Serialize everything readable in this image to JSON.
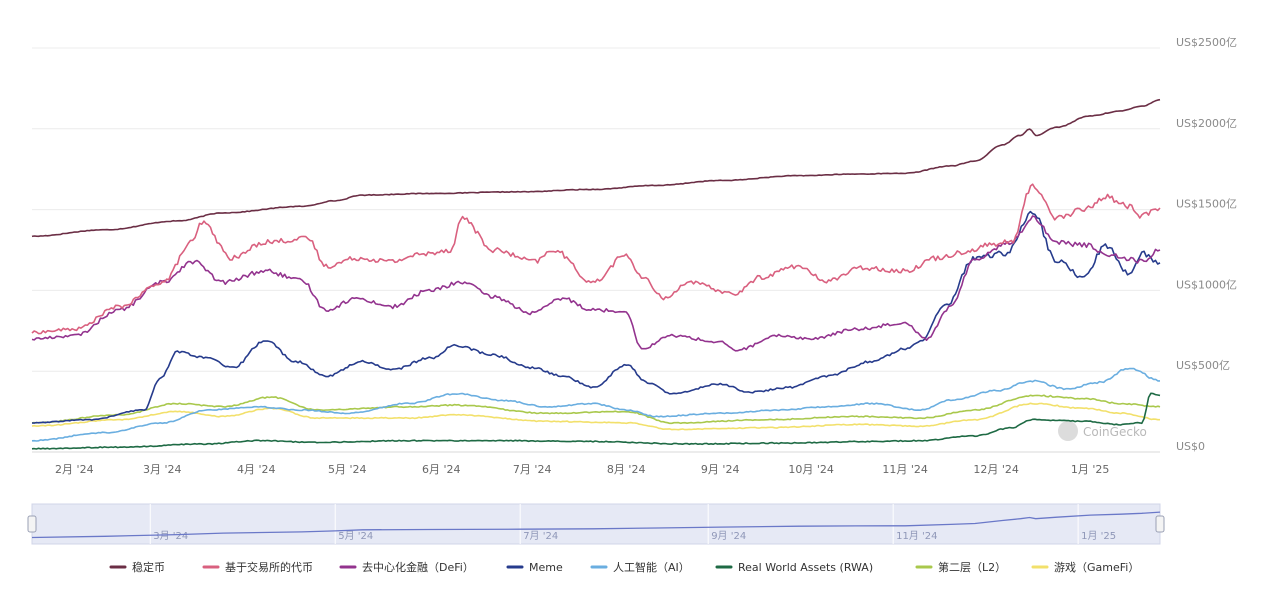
{
  "chart_data": {
    "type": "line",
    "title": "",
    "xlabel": "",
    "ylabel": "",
    "y_unit_label_format": "US${v}亿",
    "ylim": [
      0,
      2500
    ],
    "y_ticks": [
      {
        "value": 0,
        "label": "US$0"
      },
      {
        "value": 500,
        "label": "US$500亿"
      },
      {
        "value": 1000,
        "label": "US$1000亿"
      },
      {
        "value": 1500,
        "label": "US$1500亿"
      },
      {
        "value": 2000,
        "label": "US$2000亿"
      },
      {
        "value": 2500,
        "label": "US$2500亿"
      }
    ],
    "x_range": [
      "2024-01-22",
      "2025-01-28"
    ],
    "x_ticks": [
      {
        "date": "2024-02-01",
        "label": "2月 '24"
      },
      {
        "date": "2024-03-01",
        "label": "3月 '24"
      },
      {
        "date": "2024-04-01",
        "label": "4月 '24"
      },
      {
        "date": "2024-05-01",
        "label": "5月 '24"
      },
      {
        "date": "2024-06-01",
        "label": "6月 '24"
      },
      {
        "date": "2024-07-01",
        "label": "7月 '24"
      },
      {
        "date": "2024-08-01",
        "label": "8月 '24"
      },
      {
        "date": "2024-09-01",
        "label": "9月 '24"
      },
      {
        "date": "2024-10-01",
        "label": "10月 '24"
      },
      {
        "date": "2024-11-01",
        "label": "11月 '24"
      },
      {
        "date": "2024-12-01",
        "label": "12月 '24"
      },
      {
        "date": "2025-01-01",
        "label": "1月 '25"
      }
    ],
    "grid": true,
    "legend_position": "bottom",
    "watermark": "CoinGecko",
    "navigator_ticks": [
      {
        "date": "2024-03-01",
        "label": "3月 '24"
      },
      {
        "date": "2024-05-01",
        "label": "5月 '24"
      },
      {
        "date": "2024-07-01",
        "label": "7月 '24"
      },
      {
        "date": "2024-09-01",
        "label": "9月 '24"
      },
      {
        "date": "2024-11-01",
        "label": "11月 '24"
      },
      {
        "date": "2025-01-01",
        "label": "1月 '25"
      }
    ],
    "series": [
      {
        "name": "稳定币",
        "color": "#6b2e45",
        "values": [
          [
            "2024-01-22",
            1335
          ],
          [
            "2024-02-15",
            1375
          ],
          [
            "2024-03-10",
            1430
          ],
          [
            "2024-03-25",
            1480
          ],
          [
            "2024-04-20",
            1520
          ],
          [
            "2024-05-01",
            1555
          ],
          [
            "2024-05-10",
            1590
          ],
          [
            "2024-06-01",
            1600
          ],
          [
            "2024-07-01",
            1610
          ],
          [
            "2024-07-25",
            1625
          ],
          [
            "2024-08-15",
            1650
          ],
          [
            "2024-09-05",
            1680
          ],
          [
            "2024-10-01",
            1710
          ],
          [
            "2024-10-20",
            1720
          ],
          [
            "2024-11-05",
            1725
          ],
          [
            "2024-11-20",
            1770
          ],
          [
            "2024-11-28",
            1800
          ],
          [
            "2024-12-07",
            1900
          ],
          [
            "2024-12-13",
            1960
          ],
          [
            "2024-12-16",
            2000
          ],
          [
            "2024-12-18",
            1960
          ],
          [
            "2024-12-25",
            2010
          ],
          [
            "2025-01-05",
            2080
          ],
          [
            "2025-01-15",
            2110
          ],
          [
            "2025-01-22",
            2140
          ],
          [
            "2025-01-28",
            2180
          ]
        ]
      },
      {
        "name": "基于交易所的代币",
        "color": "#d9607f",
        "values": [
          [
            "2024-01-22",
            740
          ],
          [
            "2024-02-05",
            760
          ],
          [
            "2024-02-20",
            900
          ],
          [
            "2024-03-05",
            1050
          ],
          [
            "2024-03-15",
            1300
          ],
          [
            "2024-03-18",
            1420
          ],
          [
            "2024-03-28",
            1200
          ],
          [
            "2024-04-08",
            1300
          ],
          [
            "2024-04-22",
            1320
          ],
          [
            "2024-04-28",
            1150
          ],
          [
            "2024-05-08",
            1200
          ],
          [
            "2024-05-20",
            1180
          ],
          [
            "2024-05-28",
            1220
          ],
          [
            "2024-06-08",
            1250
          ],
          [
            "2024-06-12",
            1450
          ],
          [
            "2024-06-22",
            1250
          ],
          [
            "2024-07-06",
            1180
          ],
          [
            "2024-07-12",
            1250
          ],
          [
            "2024-07-25",
            1050
          ],
          [
            "2024-08-05",
            1220
          ],
          [
            "2024-08-10",
            1080
          ],
          [
            "2024-08-18",
            950
          ],
          [
            "2024-08-25",
            1050
          ],
          [
            "2024-09-10",
            980
          ],
          [
            "2024-09-18",
            1080
          ],
          [
            "2024-09-30",
            1150
          ],
          [
            "2024-10-10",
            1060
          ],
          [
            "2024-10-22",
            1140
          ],
          [
            "2024-11-05",
            1120
          ],
          [
            "2024-11-15",
            1200
          ],
          [
            "2024-11-25",
            1240
          ],
          [
            "2024-12-02",
            1280
          ],
          [
            "2024-12-10",
            1300
          ],
          [
            "2024-12-17",
            1650
          ],
          [
            "2024-12-25",
            1450
          ],
          [
            "2025-01-03",
            1500
          ],
          [
            "2025-01-10",
            1580
          ],
          [
            "2025-01-18",
            1520
          ],
          [
            "2025-01-22",
            1460
          ],
          [
            "2025-01-28",
            1510
          ]
        ]
      },
      {
        "name": "去中心化金融（DeFi）",
        "color": "#93338e",
        "values": [
          [
            "2024-01-22",
            700
          ],
          [
            "2024-02-05",
            720
          ],
          [
            "2024-02-20",
            880
          ],
          [
            "2024-03-05",
            1050
          ],
          [
            "2024-03-15",
            1180
          ],
          [
            "2024-03-25",
            1050
          ],
          [
            "2024-04-08",
            1120
          ],
          [
            "2024-04-20",
            1060
          ],
          [
            "2024-04-28",
            880
          ],
          [
            "2024-05-08",
            950
          ],
          [
            "2024-05-20",
            900
          ],
          [
            "2024-06-01",
            1000
          ],
          [
            "2024-06-12",
            1050
          ],
          [
            "2024-06-22",
            960
          ],
          [
            "2024-07-05",
            860
          ],
          [
            "2024-07-15",
            950
          ],
          [
            "2024-07-25",
            880
          ],
          [
            "2024-08-05",
            870
          ],
          [
            "2024-08-10",
            640
          ],
          [
            "2024-08-20",
            720
          ],
          [
            "2024-09-05",
            680
          ],
          [
            "2024-09-10",
            630
          ],
          [
            "2024-09-25",
            720
          ],
          [
            "2024-10-05",
            700
          ],
          [
            "2024-10-20",
            760
          ],
          [
            "2024-11-05",
            800
          ],
          [
            "2024-11-12",
            700
          ],
          [
            "2024-11-20",
            900
          ],
          [
            "2024-11-28",
            1200
          ],
          [
            "2024-12-10",
            1300
          ],
          [
            "2024-12-17",
            1450
          ],
          [
            "2024-12-25",
            1300
          ],
          [
            "2025-01-03",
            1280
          ],
          [
            "2025-01-12",
            1220
          ],
          [
            "2025-01-22",
            1180
          ],
          [
            "2025-01-28",
            1250
          ]
        ]
      },
      {
        "name": "Meme",
        "color": "#263b8c",
        "values": [
          [
            "2024-01-22",
            180
          ],
          [
            "2024-02-10",
            200
          ],
          [
            "2024-02-28",
            260
          ],
          [
            "2024-03-04",
            450
          ],
          [
            "2024-03-10",
            620
          ],
          [
            "2024-03-20",
            580
          ],
          [
            "2024-03-28",
            520
          ],
          [
            "2024-04-08",
            690
          ],
          [
            "2024-04-18",
            560
          ],
          [
            "2024-04-28",
            470
          ],
          [
            "2024-05-10",
            560
          ],
          [
            "2024-05-20",
            510
          ],
          [
            "2024-06-01",
            580
          ],
          [
            "2024-06-10",
            660
          ],
          [
            "2024-06-22",
            600
          ],
          [
            "2024-07-05",
            520
          ],
          [
            "2024-07-15",
            470
          ],
          [
            "2024-07-25",
            400
          ],
          [
            "2024-08-05",
            540
          ],
          [
            "2024-08-12",
            430
          ],
          [
            "2024-08-20",
            360
          ],
          [
            "2024-09-05",
            420
          ],
          [
            "2024-09-15",
            370
          ],
          [
            "2024-09-28",
            400
          ],
          [
            "2024-10-10",
            470
          ],
          [
            "2024-10-25",
            560
          ],
          [
            "2024-11-05",
            640
          ],
          [
            "2024-11-10",
            690
          ],
          [
            "2024-11-18",
            900
          ],
          [
            "2024-11-28",
            1200
          ],
          [
            "2024-12-08",
            1230
          ],
          [
            "2024-12-17",
            1480
          ],
          [
            "2024-12-25",
            1180
          ],
          [
            "2025-01-03",
            1080
          ],
          [
            "2025-01-10",
            1280
          ],
          [
            "2025-01-18",
            1100
          ],
          [
            "2025-01-22",
            1230
          ],
          [
            "2025-01-28",
            1170
          ]
        ]
      },
      {
        "name": "人工智能（AI）",
        "color": "#6aaee0",
        "values": [
          [
            "2024-01-22",
            70
          ],
          [
            "2024-02-15",
            120
          ],
          [
            "2024-03-05",
            180
          ],
          [
            "2024-03-20",
            260
          ],
          [
            "2024-04-05",
            280
          ],
          [
            "2024-04-20",
            260
          ],
          [
            "2024-05-05",
            240
          ],
          [
            "2024-05-25",
            300
          ],
          [
            "2024-06-10",
            360
          ],
          [
            "2024-06-25",
            320
          ],
          [
            "2024-07-10",
            280
          ],
          [
            "2024-07-25",
            300
          ],
          [
            "2024-08-05",
            260
          ],
          [
            "2024-08-15",
            220
          ],
          [
            "2024-09-05",
            240
          ],
          [
            "2024-09-25",
            260
          ],
          [
            "2024-10-10",
            280
          ],
          [
            "2024-10-25",
            300
          ],
          [
            "2024-11-10",
            260
          ],
          [
            "2024-11-20",
            320
          ],
          [
            "2024-12-05",
            380
          ],
          [
            "2024-12-17",
            440
          ],
          [
            "2024-12-28",
            390
          ],
          [
            "2025-01-08",
            430
          ],
          [
            "2025-01-18",
            520
          ],
          [
            "2025-01-28",
            440
          ]
        ]
      },
      {
        "name": "Real World Assets (RWA)",
        "color": "#1e6a44",
        "values": [
          [
            "2024-01-22",
            20
          ],
          [
            "2024-02-20",
            30
          ],
          [
            "2024-03-20",
            50
          ],
          [
            "2024-04-05",
            70
          ],
          [
            "2024-04-25",
            60
          ],
          [
            "2024-05-25",
            70
          ],
          [
            "2024-06-25",
            70
          ],
          [
            "2024-07-25",
            65
          ],
          [
            "2024-08-25",
            50
          ],
          [
            "2024-09-25",
            55
          ],
          [
            "2024-10-25",
            65
          ],
          [
            "2024-11-10",
            70
          ],
          [
            "2024-11-28",
            100
          ],
          [
            "2024-12-10",
            150
          ],
          [
            "2024-12-17",
            200
          ],
          [
            "2025-01-03",
            190
          ],
          [
            "2025-01-15",
            170
          ],
          [
            "2025-01-22",
            180
          ],
          [
            "2025-01-25",
            360
          ],
          [
            "2025-01-28",
            350
          ]
        ]
      },
      {
        "name": "第二层（L2）",
        "color": "#a9c84c",
        "values": [
          [
            "2024-01-22",
            180
          ],
          [
            "2024-02-20",
            230
          ],
          [
            "2024-03-10",
            300
          ],
          [
            "2024-03-25",
            280
          ],
          [
            "2024-04-10",
            340
          ],
          [
            "2024-04-25",
            260
          ],
          [
            "2024-05-25",
            280
          ],
          [
            "2024-06-10",
            290
          ],
          [
            "2024-07-10",
            240
          ],
          [
            "2024-08-05",
            250
          ],
          [
            "2024-08-20",
            180
          ],
          [
            "2024-09-20",
            200
          ],
          [
            "2024-10-20",
            220
          ],
          [
            "2024-11-10",
            210
          ],
          [
            "2024-11-28",
            260
          ],
          [
            "2024-12-17",
            350
          ],
          [
            "2025-01-03",
            330
          ],
          [
            "2025-01-15",
            300
          ],
          [
            "2025-01-28",
            280
          ]
        ]
      },
      {
        "name": "游戏（GameFi）",
        "color": "#f2e06b",
        "values": [
          [
            "2024-01-22",
            160
          ],
          [
            "2024-02-20",
            200
          ],
          [
            "2024-03-10",
            250
          ],
          [
            "2024-03-25",
            220
          ],
          [
            "2024-04-10",
            270
          ],
          [
            "2024-04-25",
            210
          ],
          [
            "2024-05-25",
            210
          ],
          [
            "2024-06-10",
            230
          ],
          [
            "2024-07-10",
            190
          ],
          [
            "2024-08-05",
            180
          ],
          [
            "2024-08-20",
            140
          ],
          [
            "2024-09-20",
            150
          ],
          [
            "2024-10-20",
            170
          ],
          [
            "2024-11-10",
            160
          ],
          [
            "2024-11-28",
            200
          ],
          [
            "2024-12-17",
            300
          ],
          [
            "2025-01-03",
            270
          ],
          [
            "2025-01-15",
            240
          ],
          [
            "2025-01-28",
            200
          ]
        ]
      }
    ],
    "navigator_series": {
      "name": "稳定币",
      "color": "#6a78c8"
    }
  }
}
